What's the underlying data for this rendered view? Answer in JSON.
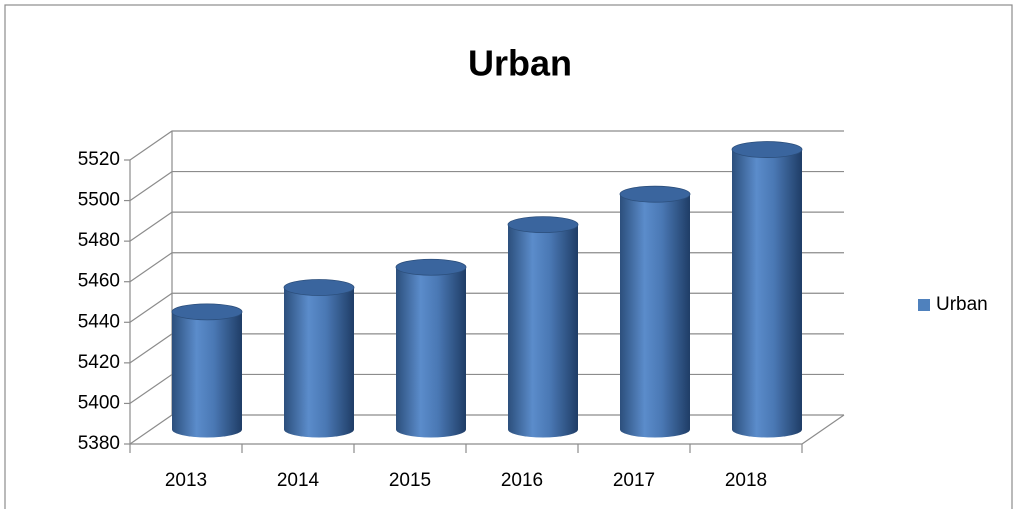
{
  "chart_data": {
    "type": "bar",
    "title": "Urban",
    "categories": [
      "2013",
      "2014",
      "2015",
      "2016",
      "2017",
      "2018"
    ],
    "series": [
      {
        "name": "Urban",
        "color": "#4f81bd",
        "values": [
          5438,
          5450,
          5460,
          5481,
          5496,
          5518
        ]
      }
    ],
    "ylim": [
      5380,
      5520
    ],
    "yticks": [
      5380,
      5400,
      5420,
      5440,
      5460,
      5480,
      5500,
      5520
    ],
    "grid": true,
    "legend": "right"
  }
}
